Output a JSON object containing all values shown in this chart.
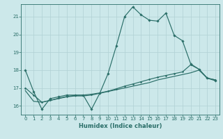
{
  "xlabel": "Humidex (Indice chaleur)",
  "xlim": [
    -0.5,
    23.5
  ],
  "ylim": [
    15.5,
    21.7
  ],
  "yticks": [
    16,
    17,
    18,
    19,
    20,
    21
  ],
  "xticks": [
    0,
    1,
    2,
    3,
    4,
    5,
    6,
    7,
    8,
    9,
    10,
    11,
    12,
    13,
    14,
    15,
    16,
    17,
    18,
    19,
    20,
    21,
    22,
    23
  ],
  "background_color": "#cce8ea",
  "grid_color": "#b0d0d4",
  "line_color": "#2a6e68",
  "line1_x": [
    0,
    1,
    2,
    3,
    4,
    5,
    6,
    7,
    8,
    9,
    10,
    11,
    12,
    13,
    14,
    15,
    16,
    17,
    18,
    19,
    20,
    21,
    22,
    23
  ],
  "line1_y": [
    18.0,
    16.8,
    15.8,
    16.4,
    16.5,
    16.6,
    16.6,
    16.6,
    15.8,
    16.7,
    17.8,
    19.35,
    21.0,
    21.55,
    21.1,
    20.8,
    20.75,
    21.2,
    19.95,
    19.65,
    18.35,
    18.05,
    17.55,
    17.4
  ],
  "line2_x": [
    0,
    1,
    2,
    3,
    4,
    5,
    6,
    7,
    8,
    9,
    10,
    11,
    12,
    13,
    14,
    15,
    16,
    17,
    18,
    19,
    20,
    21,
    22,
    23
  ],
  "line2_y": [
    16.85,
    16.25,
    16.2,
    16.3,
    16.4,
    16.5,
    16.55,
    16.55,
    16.6,
    16.7,
    16.8,
    16.9,
    17.0,
    17.1,
    17.2,
    17.3,
    17.45,
    17.55,
    17.65,
    17.75,
    17.85,
    18.0,
    17.55,
    17.45
  ],
  "line3_x": [
    0,
    1,
    2,
    3,
    4,
    5,
    6,
    7,
    8,
    9,
    10,
    11,
    12,
    13,
    14,
    15,
    16,
    17,
    18,
    19,
    20,
    21,
    22,
    23
  ],
  "line3_y": [
    17.0,
    16.6,
    16.2,
    16.3,
    16.42,
    16.52,
    16.58,
    16.6,
    16.65,
    16.72,
    16.82,
    16.95,
    17.1,
    17.22,
    17.35,
    17.48,
    17.6,
    17.7,
    17.8,
    17.9,
    18.3,
    18.05,
    17.55,
    17.45
  ]
}
